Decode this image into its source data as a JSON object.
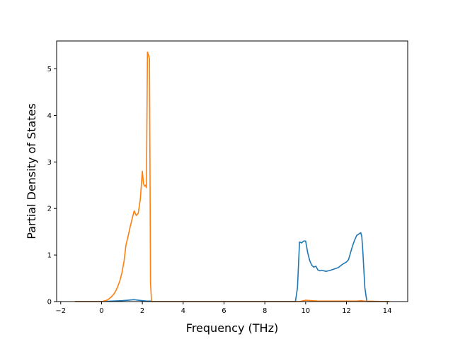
{
  "chart_data": {
    "type": "line",
    "title": "",
    "xlabel": "Frequency (THz)",
    "ylabel": "Partial Density of States",
    "xlim": [
      -2.2,
      15.0
    ],
    "ylim": [
      0,
      5.6
    ],
    "xticks": [
      -2,
      0,
      2,
      4,
      6,
      8,
      10,
      12,
      14
    ],
    "yticks": [
      0,
      1,
      2,
      3,
      4,
      5
    ],
    "grid": false,
    "legend": "none",
    "series": [
      {
        "color": "#1f77b4",
        "x": [
          -1.3,
          0.0,
          0.5,
          1.0,
          1.3,
          1.6,
          1.8,
          2.0,
          2.2,
          2.4,
          2.45,
          9.5,
          9.6,
          9.7,
          9.8,
          9.9,
          10.0,
          10.1,
          10.2,
          10.3,
          10.4,
          10.5,
          10.6,
          10.7,
          10.8,
          11.0,
          11.2,
          11.4,
          11.6,
          11.8,
          12.0,
          12.1,
          12.2,
          12.3,
          12.4,
          12.5,
          12.6,
          12.7,
          12.75,
          12.8,
          12.9,
          13.0,
          14.1
        ],
        "values": [
          0.0,
          0.0,
          0.01,
          0.02,
          0.03,
          0.04,
          0.03,
          0.02,
          0.01,
          0.01,
          0.0,
          0.0,
          0.3,
          1.28,
          1.26,
          1.3,
          1.3,
          1.05,
          0.88,
          0.78,
          0.74,
          0.76,
          0.68,
          0.66,
          0.67,
          0.65,
          0.67,
          0.7,
          0.73,
          0.8,
          0.85,
          0.9,
          1.05,
          1.2,
          1.32,
          1.42,
          1.45,
          1.48,
          1.4,
          1.1,
          0.3,
          0.0,
          0.0
        ]
      },
      {
        "color": "#ff7f0e",
        "x": [
          -1.3,
          0.0,
          0.1,
          0.2,
          0.3,
          0.4,
          0.5,
          0.6,
          0.7,
          0.8,
          0.9,
          1.0,
          1.1,
          1.2,
          1.3,
          1.4,
          1.5,
          1.6,
          1.7,
          1.8,
          1.9,
          2.0,
          2.05,
          2.1,
          2.15,
          2.2,
          2.25,
          2.3,
          2.35,
          2.4,
          2.45,
          2.5,
          9.7,
          10.0,
          10.3,
          10.6,
          12.0,
          12.5,
          12.7,
          12.9,
          14.1
        ],
        "values": [
          0.0,
          0.0,
          0.01,
          0.02,
          0.04,
          0.07,
          0.11,
          0.16,
          0.23,
          0.33,
          0.45,
          0.62,
          0.86,
          1.22,
          1.4,
          1.6,
          1.78,
          1.95,
          1.85,
          1.9,
          2.2,
          2.8,
          2.55,
          2.48,
          2.5,
          2.45,
          5.36,
          5.3,
          5.22,
          0.4,
          0.0,
          0.0,
          0.0,
          0.03,
          0.02,
          0.01,
          0.01,
          0.01,
          0.02,
          0.01,
          0.0
        ]
      }
    ]
  }
}
